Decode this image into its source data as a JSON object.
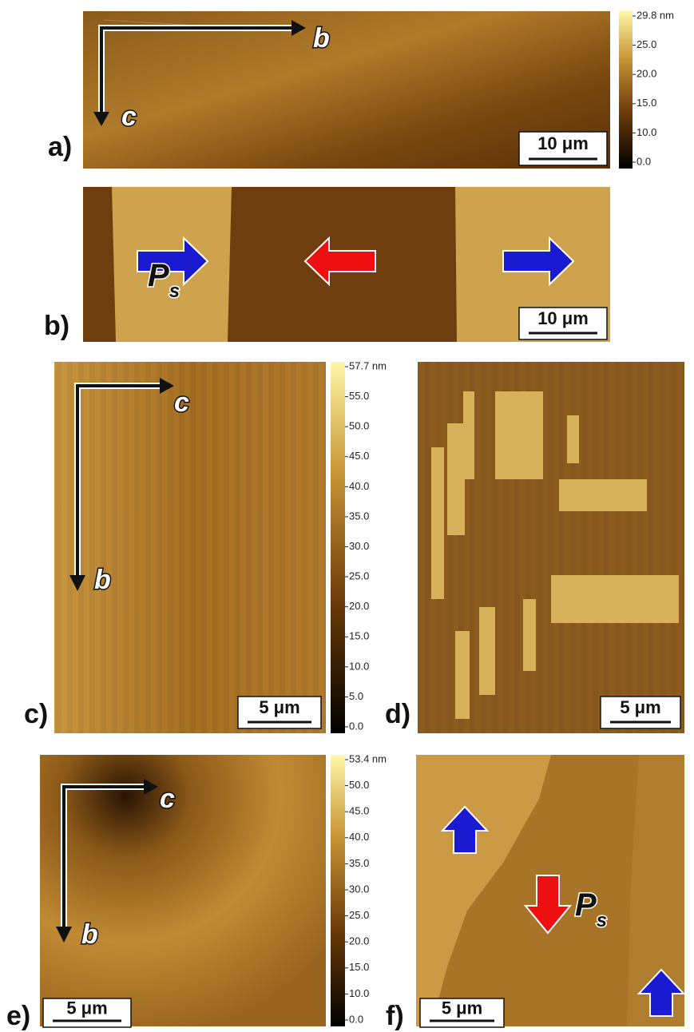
{
  "panels": [
    {
      "label": "a)",
      "axis_h": "b",
      "axis_v": "c",
      "scale_bar": "10 μm",
      "colorbar": {
        "ticks": [
          "29.8 nm",
          "25.0",
          "20.0",
          "15.0",
          "10.0",
          "0.0"
        ]
      }
    },
    {
      "label": "b)",
      "scale_bar": "10 μm",
      "polarization": {
        "symbol": "P",
        "subscript": "s"
      }
    },
    {
      "label": "c)",
      "axis_h": "c",
      "axis_v": "b",
      "scale_bar": "5 μm",
      "colorbar": {
        "ticks": [
          "57.7 nm",
          "55.0",
          "50.0",
          "45.0",
          "40.0",
          "35.0",
          "30.0",
          "25.0",
          "20.0",
          "15.0",
          "10.0",
          "5.0",
          "0.0"
        ]
      }
    },
    {
      "label": "d)",
      "scale_bar": "5 μm"
    },
    {
      "label": "e)",
      "axis_h": "c",
      "axis_v": "b",
      "scale_bar": "5 μm",
      "colorbar": {
        "ticks": [
          "53.4 nm",
          "50.0",
          "45.0",
          "40.0",
          "35.0",
          "30.0",
          "25.0",
          "20.0",
          "15.0",
          "10.0",
          "0.0"
        ]
      }
    },
    {
      "label": "f)",
      "scale_bar": "5 μm",
      "polarization": {
        "symbol": "P",
        "subscript": "s"
      }
    }
  ]
}
